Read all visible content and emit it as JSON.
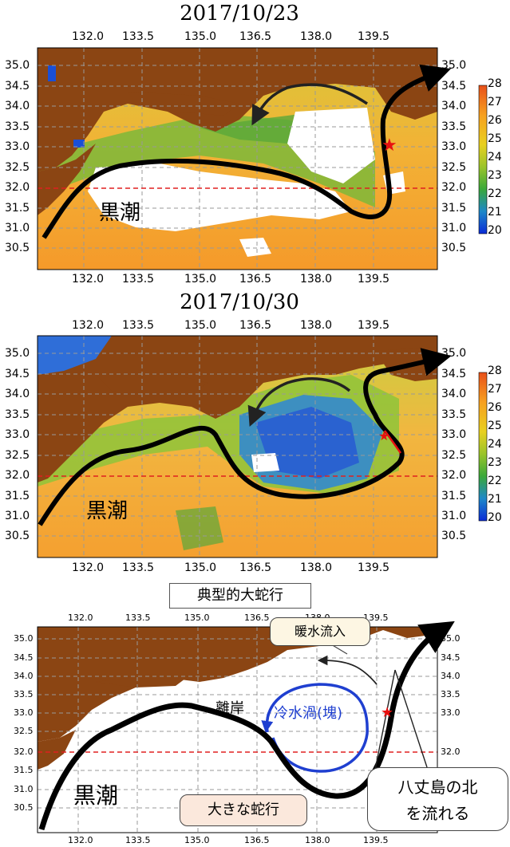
{
  "panels": [
    {
      "date": "2017/10/23",
      "x_ticks": [
        "132.0",
        "133.5",
        "135.0",
        "136.5",
        "138.0",
        "139.5"
      ],
      "y_ticks": [
        "35.0",
        "34.5",
        "34.0",
        "33.5",
        "33.0",
        "32.5",
        "32.0",
        "31.5",
        "31.0",
        "30.5"
      ],
      "kuroshio_label": "黒潮",
      "colorbar_ticks": [
        "28",
        "27",
        "26",
        "25",
        "24",
        "23",
        "22",
        "21",
        "20"
      ]
    },
    {
      "date": "2017/10/30",
      "x_ticks": [
        "132.0",
        "133.5",
        "135.0",
        "136.5",
        "138.0",
        "139.5"
      ],
      "y_ticks": [
        "35.0",
        "34.5",
        "34.0",
        "33.5",
        "33.0",
        "32.5",
        "32.0",
        "31.5",
        "31.0",
        "30.5"
      ],
      "kuroshio_label": "黒潮",
      "colorbar_ticks": [
        "28",
        "27",
        "26",
        "25",
        "24",
        "23",
        "22",
        "21",
        "20"
      ]
    }
  ],
  "schematic": {
    "title": "典型的大蛇行",
    "x_ticks": [
      "132.0",
      "133.5",
      "135.0",
      "136.5",
      "138.0",
      "139.5"
    ],
    "y_ticks": [
      "35.0",
      "34.5",
      "34.0",
      "33.5",
      "33.0",
      "32.5",
      "32.0",
      "31.5",
      "31.0",
      "30.5"
    ],
    "kuroshio_label": "黒潮",
    "warm_inflow": "暖水流入",
    "cold_eddy": "冷水渦(塊)",
    "offshore": "離岸",
    "large_meander": "大きな蛇行",
    "hachijo_line1": "八丈島の北",
    "hachijo_line2": "を流れる"
  },
  "colors": {
    "land": "#8b4513",
    "warm": "#f5a623",
    "kuroshio_path": "#000000",
    "latitude_32_line": "#e02020",
    "station_star": "#e81010",
    "cold_eddy": "#1f3fd0"
  },
  "colorbar": {
    "min": 20,
    "max": 28,
    "unit_hint": ""
  }
}
